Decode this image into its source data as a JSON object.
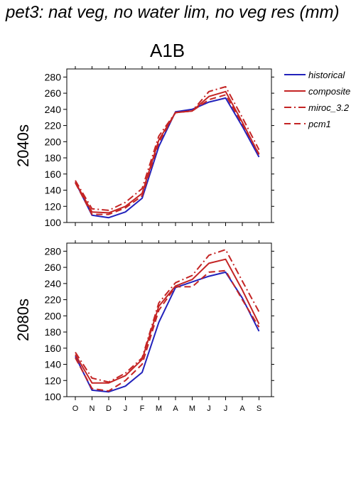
{
  "title": "pet3: nat veg, no water lim, no veg res (mm)",
  "scenario": "A1B",
  "chart_data": [
    {
      "type": "line",
      "panel_label": "2040s",
      "x": [
        "O",
        "N",
        "D",
        "J",
        "F",
        "M",
        "A",
        "M",
        "J",
        "J",
        "A",
        "S"
      ],
      "xtick_labels_shown": false,
      "ylim": [
        100,
        290
      ],
      "yticks": [
        100,
        120,
        140,
        160,
        180,
        200,
        220,
        240,
        260,
        280
      ],
      "series": [
        {
          "name": "historical",
          "color": "#2222bb",
          "dash": "solid",
          "values": [
            150,
            109,
            106,
            113,
            130,
            194,
            237,
            240,
            249,
            254,
            219,
            181
          ]
        },
        {
          "name": "composite",
          "color": "#c42424",
          "dash": "solid",
          "values": [
            150,
            113,
            112,
            120,
            136,
            202,
            236,
            238,
            256,
            262,
            224,
            184
          ]
        },
        {
          "name": "miroc_3.2",
          "color": "#c42424",
          "dash": "dashdot",
          "values": [
            152,
            117,
            115,
            125,
            142,
            207,
            236,
            238,
            262,
            268,
            230,
            190
          ]
        },
        {
          "name": "pcm1",
          "color": "#c42424",
          "dash": "dashed",
          "values": [
            149,
            110,
            110,
            118,
            133,
            199,
            236,
            238,
            252,
            258,
            222,
            185
          ]
        }
      ]
    },
    {
      "type": "line",
      "panel_label": "2080s",
      "x": [
        "O",
        "N",
        "D",
        "J",
        "F",
        "M",
        "A",
        "M",
        "J",
        "J",
        "A",
        "S"
      ],
      "xtick_labels_shown": true,
      "ylim": [
        100,
        290
      ],
      "yticks": [
        100,
        120,
        140,
        160,
        180,
        200,
        220,
        240,
        260,
        280
      ],
      "series": [
        {
          "name": "historical",
          "color": "#2222bb",
          "dash": "solid",
          "values": [
            150,
            108,
            106,
            113,
            130,
            192,
            235,
            242,
            249,
            254,
            222,
            181
          ]
        },
        {
          "name": "composite",
          "color": "#c42424",
          "dash": "solid",
          "values": [
            152,
            117,
            117,
            126,
            146,
            212,
            237,
            245,
            265,
            270,
            232,
            190
          ]
        },
        {
          "name": "miroc_3.2",
          "color": "#c42424",
          "dash": "dashdot",
          "values": [
            155,
            123,
            118,
            129,
            148,
            216,
            241,
            250,
            275,
            282,
            243,
            205
          ]
        },
        {
          "name": "pcm1",
          "color": "#c42424",
          "dash": "dashed",
          "values": [
            148,
            110,
            107,
            120,
            140,
            207,
            236,
            236,
            254,
            256,
            220,
            186
          ]
        }
      ]
    }
  ],
  "legend": [
    {
      "name": "historical",
      "color": "#2222bb",
      "dash": "solid"
    },
    {
      "name": "composite",
      "color": "#c42424",
      "dash": "solid"
    },
    {
      "name": "miroc_3.2",
      "color": "#c42424",
      "dash": "dashdot"
    },
    {
      "name": "pcm1",
      "color": "#c42424",
      "dash": "dashed"
    }
  ]
}
